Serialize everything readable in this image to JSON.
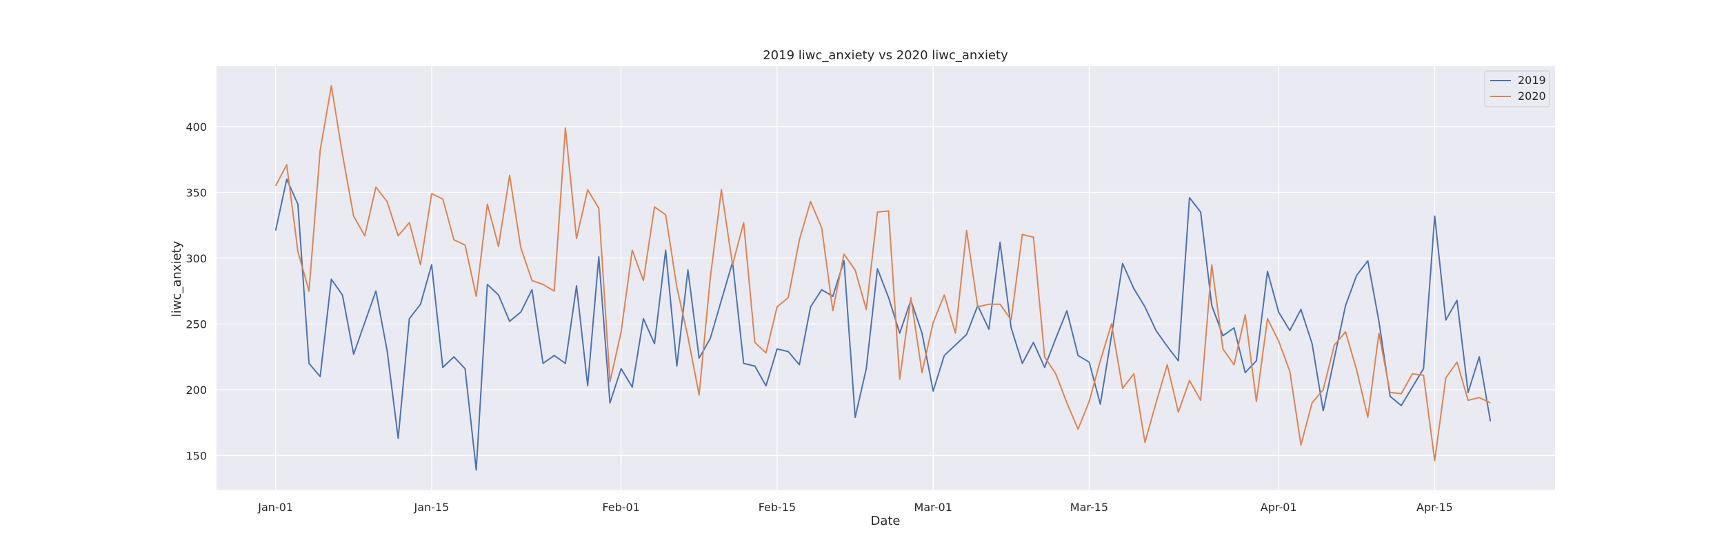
{
  "chart_data": {
    "type": "line",
    "title": "2019 liwc_anxiety vs 2020 liwc_anxiety",
    "xlabel": "Date",
    "ylabel": "liwc_anxiety",
    "x_start": "Jan-01",
    "x_ticks": [
      {
        "day": 0,
        "label": "Jan-01"
      },
      {
        "day": 14,
        "label": "Jan-15"
      },
      {
        "day": 31,
        "label": "Feb-01"
      },
      {
        "day": 45,
        "label": "Feb-15"
      },
      {
        "day": 59,
        "label": "Mar-01"
      },
      {
        "day": 73,
        "label": "Mar-15"
      },
      {
        "day": 90,
        "label": "Apr-01"
      },
      {
        "day": 104,
        "label": "Apr-15"
      }
    ],
    "y_ticks": [
      150,
      200,
      250,
      300,
      350,
      400
    ],
    "xlim": [
      -5.3,
      114.8
    ],
    "ylim": [
      124,
      446
    ],
    "grid": true,
    "legend_position": "top-right",
    "colors": {
      "background": "#eaeaf2",
      "grid": "#ffffff",
      "2019": "#4c72b0",
      "2020": "#dd8452"
    },
    "series": [
      {
        "name": "2019",
        "values": [
          321,
          360,
          341,
          220,
          210,
          284,
          272,
          227,
          251,
          275,
          230,
          163,
          254,
          265,
          295,
          217,
          225,
          216,
          139,
          280,
          272,
          252,
          259,
          276,
          220,
          226,
          220,
          279,
          203,
          301,
          190,
          216,
          202,
          254,
          235,
          306,
          218,
          291,
          224,
          239,
          268,
          297,
          220,
          218,
          203,
          231,
          229,
          219,
          263,
          276,
          271,
          298,
          179,
          216,
          292,
          270,
          243,
          268,
          243,
          199,
          226,
          234,
          242,
          264,
          246,
          312,
          247,
          220,
          236,
          217,
          239,
          260,
          226,
          221,
          189,
          241,
          296,
          277,
          263,
          245,
          233,
          222,
          346,
          335,
          264,
          241,
          247,
          213,
          222,
          290,
          259,
          245,
          261,
          235,
          184,
          224,
          264,
          287,
          298,
          252,
          195,
          188,
          202,
          216,
          332,
          253,
          268,
          198,
          225,
          176
        ]
      },
      {
        "name": "2020",
        "values": [
          355,
          371,
          305,
          275,
          382,
          431,
          379,
          332,
          317,
          354,
          343,
          317,
          327,
          295,
          349,
          345,
          314,
          310,
          271,
          341,
          309,
          363,
          308,
          283,
          280,
          275,
          399,
          315,
          352,
          338,
          206,
          244,
          306,
          283,
          339,
          333,
          278,
          240,
          196,
          285,
          352,
          295,
          327,
          236,
          228,
          263,
          270,
          314,
          343,
          323,
          260,
          303,
          291,
          261,
          335,
          336,
          208,
          270,
          213,
          251,
          272,
          243,
          321,
          263,
          265,
          265,
          253,
          318,
          316,
          225,
          212,
          190,
          170,
          191,
          222,
          250,
          201,
          212,
          160,
          190,
          219,
          183,
          207,
          192,
          295,
          231,
          219,
          257,
          191,
          254,
          237,
          214,
          158,
          190,
          200,
          234,
          244,
          215,
          179,
          243,
          198,
          197,
          212,
          211,
          146,
          209,
          221,
          192,
          194,
          190
        ]
      }
    ]
  }
}
